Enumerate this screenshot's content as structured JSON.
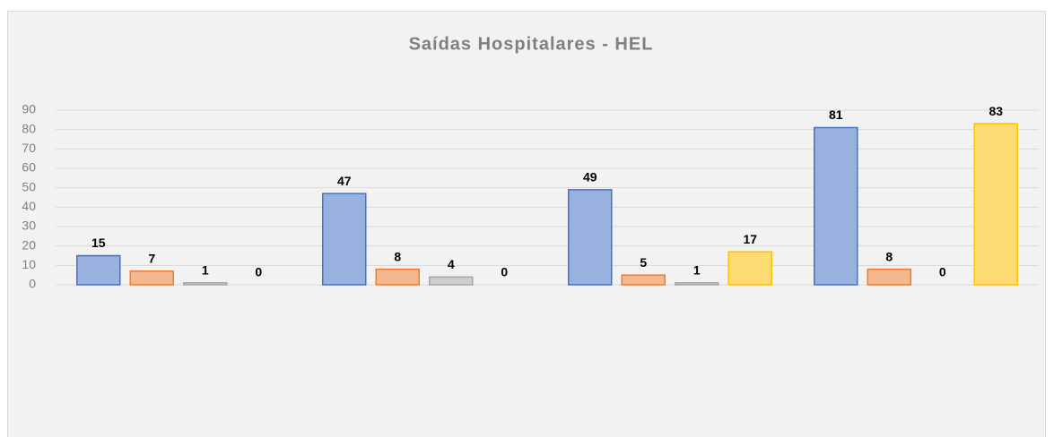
{
  "chart_data": {
    "type": "bar",
    "title": "Saídas Hospitalares - HEL",
    "categories": [
      null,
      null,
      null,
      null
    ],
    "series": [
      {
        "color": "#4472c4",
        "values": [
          15,
          47,
          49,
          81
        ]
      },
      {
        "color": "#ed7d31",
        "values": [
          7,
          8,
          5,
          8
        ]
      },
      {
        "color": "#a5a5a5",
        "values": [
          1,
          4,
          1,
          0
        ]
      },
      {
        "color": "#ffc000",
        "values": [
          0,
          0,
          17,
          83
        ]
      }
    ],
    "ylim": [
      0,
      90
    ],
    "yticks": [
      0,
      10,
      20,
      30,
      40,
      50,
      60,
      70,
      80,
      90
    ],
    "grid": true
  }
}
